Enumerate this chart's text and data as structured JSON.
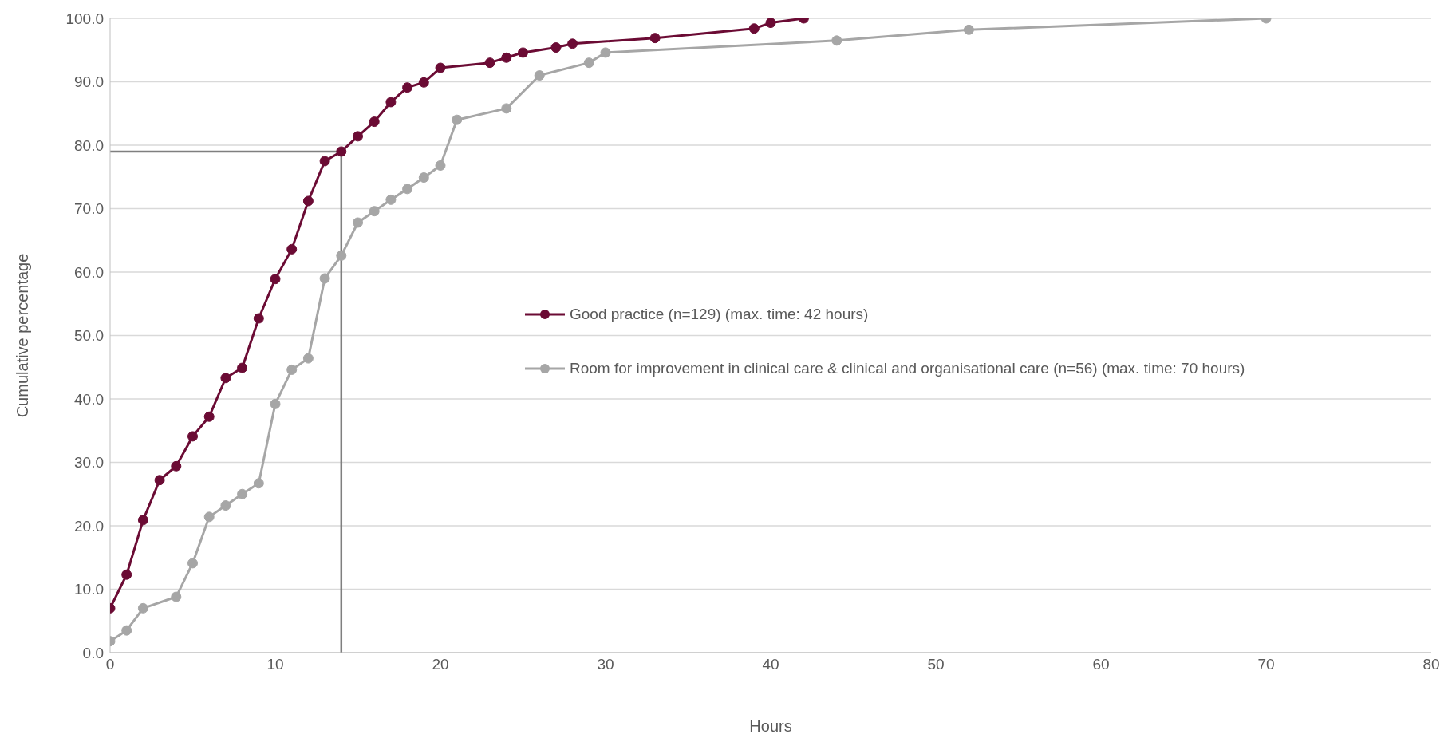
{
  "chart_data": {
    "type": "line",
    "xlabel": "Hours",
    "ylabel": "Cumulative percentage",
    "xlim": [
      0,
      80
    ],
    "xticks": [
      0,
      10,
      20,
      30,
      40,
      50,
      60,
      70,
      80
    ],
    "ylim": [
      0,
      100
    ],
    "yticks": [
      {
        "value": 0,
        "label": "0.0"
      },
      {
        "value": 10,
        "label": "10.0"
      },
      {
        "value": 20,
        "label": "20.0"
      },
      {
        "value": 30,
        "label": "30.0"
      },
      {
        "value": 40,
        "label": "40.0"
      },
      {
        "value": 50,
        "label": "50.0"
      },
      {
        "value": 60,
        "label": "60.0"
      },
      {
        "value": 70,
        "label": "70.0"
      },
      {
        "value": 80,
        "label": "80.0"
      },
      {
        "value": 90,
        "label": "90.0"
      },
      {
        "value": 100,
        "label": "100.0"
      }
    ],
    "grid": "y",
    "legend": "right",
    "marker": "circle",
    "line_style": "solid",
    "series": [
      {
        "name": "Good practice (n=129) (max. time: 42 hours)",
        "color": "#6b0b34",
        "x": [
          0,
          1,
          2,
          3,
          4,
          5,
          6,
          7,
          8,
          9,
          10,
          11,
          12,
          13,
          14,
          15,
          16,
          17,
          18,
          19,
          20,
          23,
          24,
          25,
          27,
          28,
          33,
          39,
          40,
          42
        ],
        "values": [
          7.0,
          12.3,
          20.9,
          27.2,
          29.4,
          34.1,
          37.2,
          43.3,
          44.9,
          52.7,
          58.9,
          63.6,
          71.2,
          77.5,
          79.0,
          81.4,
          83.7,
          86.8,
          89.1,
          89.9,
          92.2,
          93.0,
          93.8,
          94.6,
          95.4,
          96.0,
          96.9,
          98.4,
          99.3,
          100.0
        ]
      },
      {
        "name": "Room for improvement in clinical care & clinical and organisational care (n=56) (max. time: 70 hours)",
        "color": "#a6a6a6",
        "x": [
          0,
          1,
          2,
          4,
          5,
          6,
          7,
          8,
          9,
          10,
          11,
          12,
          13,
          14,
          15,
          16,
          17,
          18,
          19,
          20,
          21,
          24,
          26,
          29,
          30,
          44,
          52,
          70
        ],
        "values": [
          1.8,
          3.5,
          7.0,
          8.8,
          14.1,
          21.4,
          23.2,
          25.0,
          26.7,
          39.2,
          44.6,
          46.4,
          59.0,
          62.6,
          67.8,
          69.6,
          71.4,
          73.1,
          74.9,
          76.8,
          84.0,
          85.8,
          91.0,
          93.0,
          94.6,
          96.5,
          98.2,
          100.0
        ]
      }
    ],
    "ref_lines": [
      {
        "axis": "x",
        "value": 14,
        "color": "#7f7f7f"
      },
      {
        "axis": "y",
        "value": 79.0,
        "color": "#7f7f7f"
      }
    ]
  }
}
